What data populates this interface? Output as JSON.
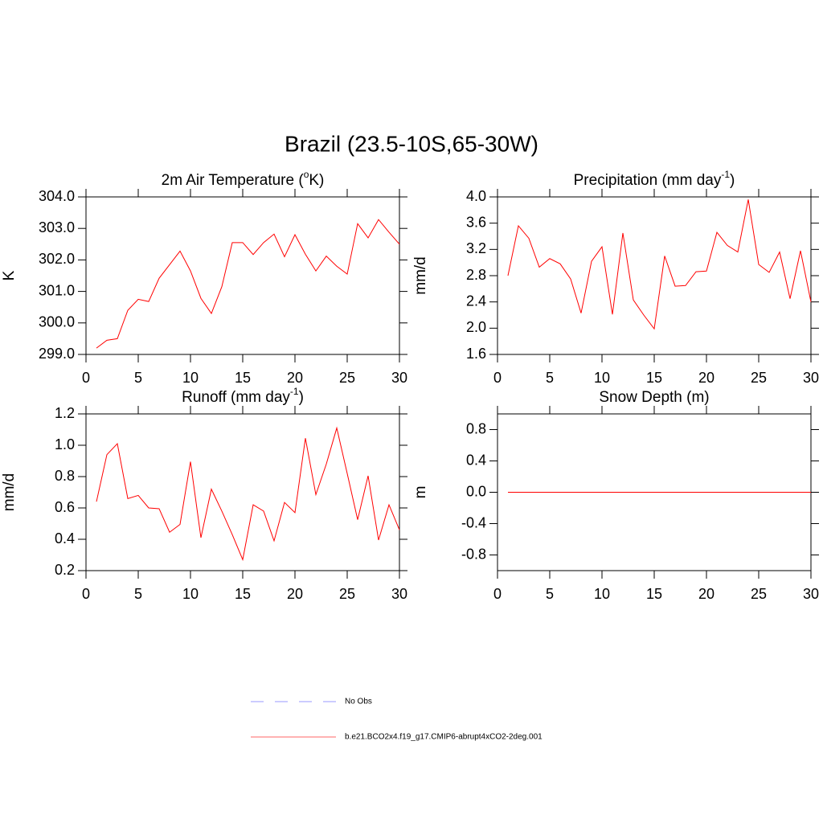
{
  "title": "Brazil (23.5-10S,65-30W)",
  "legend": [
    {
      "name": "No Obs",
      "color": "#9999ff",
      "dashed": true
    },
    {
      "name": "b.e21.BCO2x4.f19_g17.CMIP6-abrupt4xCO2-2deg.001",
      "color": "#ff6666",
      "dashed": false
    }
  ],
  "chart_data": [
    {
      "type": "line",
      "title": [
        {
          "text": "2m Air Temperature ("
        },
        {
          "text": "o",
          "sup": true
        },
        {
          "text": "K)"
        }
      ],
      "y_label": "K",
      "x": [
        1,
        2,
        3,
        4,
        5,
        6,
        7,
        8,
        9,
        10,
        11,
        12,
        13,
        14,
        15,
        16,
        17,
        18,
        19,
        20,
        21,
        22,
        23,
        24,
        25,
        26,
        27,
        28,
        29,
        30
      ],
      "xlim": [
        0,
        30
      ],
      "xticks": [
        0,
        5,
        10,
        15,
        20,
        25,
        30
      ],
      "ylim": [
        299,
        304
      ],
      "yticks": [
        {
          "value": 299,
          "label": "299.0"
        },
        {
          "value": 300,
          "label": "300.0"
        },
        {
          "value": 301,
          "label": "301.0"
        },
        {
          "value": 302,
          "label": "302.0"
        },
        {
          "value": 303,
          "label": "303.0"
        },
        {
          "value": 304,
          "label": "304.0"
        }
      ],
      "series": [
        {
          "color": "#ff0000",
          "values": [
            299.2,
            299.45,
            299.5,
            300.4,
            300.75,
            300.68,
            301.42,
            301.85,
            302.28,
            301.65,
            300.78,
            300.3,
            301.15,
            302.55,
            302.55,
            302.17,
            302.55,
            302.82,
            302.1,
            302.8,
            302.18,
            301.65,
            302.12,
            301.8,
            301.55,
            303.15,
            302.7,
            303.28,
            302.88,
            302.5
          ]
        }
      ]
    },
    {
      "type": "line",
      "title": [
        {
          "text": "Precipitation (mm day"
        },
        {
          "text": "-1",
          "sup": true
        },
        {
          "text": ")"
        }
      ],
      "y_label": "mm/d",
      "x": [
        1,
        2,
        3,
        4,
        5,
        6,
        7,
        8,
        9,
        10,
        11,
        12,
        13,
        14,
        15,
        16,
        17,
        18,
        19,
        20,
        21,
        22,
        23,
        24,
        25,
        26,
        27,
        28,
        29,
        30
      ],
      "xlim": [
        0,
        30
      ],
      "xticks": [
        0,
        5,
        10,
        15,
        20,
        25,
        30
      ],
      "ylim": [
        1.6,
        4.0
      ],
      "yticks": [
        1.6,
        {
          "value": 2,
          "label": "2.0"
        },
        2.4,
        2.8,
        3.2,
        3.6,
        {
          "value": 4,
          "label": "4.0"
        }
      ],
      "series": [
        {
          "color": "#ff0000",
          "values": [
            2.8,
            3.56,
            3.37,
            2.93,
            3.06,
            2.98,
            2.75,
            2.23,
            3.02,
            3.24,
            2.21,
            3.45,
            2.43,
            2.2,
            1.99,
            3.1,
            2.64,
            2.65,
            2.86,
            2.87,
            3.46,
            3.26,
            3.16,
            3.96,
            2.97,
            2.85,
            3.16,
            2.45,
            3.18,
            2.4
          ]
        }
      ]
    },
    {
      "type": "line",
      "title": [
        {
          "text": "Runoff (mm day"
        },
        {
          "text": "-1",
          "sup": true
        },
        {
          "text": ")"
        }
      ],
      "y_label": "mm/d",
      "x": [
        1,
        2,
        3,
        4,
        5,
        6,
        7,
        8,
        9,
        10,
        11,
        12,
        13,
        14,
        15,
        16,
        17,
        18,
        19,
        20,
        21,
        22,
        23,
        24,
        25,
        26,
        27,
        28,
        29,
        30
      ],
      "xlim": [
        0,
        30
      ],
      "xticks": [
        0,
        5,
        10,
        15,
        20,
        25,
        30
      ],
      "ylim": [
        0.2,
        1.2
      ],
      "yticks": [
        0.2,
        0.4,
        0.6,
        0.8,
        {
          "value": 1,
          "label": "1.0"
        },
        1.2
      ],
      "series": [
        {
          "color": "#ff0000",
          "values": [
            0.64,
            0.94,
            1.01,
            0.66,
            0.68,
            0.6,
            0.595,
            0.445,
            0.495,
            0.895,
            0.41,
            0.72,
            0.58,
            0.43,
            0.27,
            0.62,
            0.58,
            0.39,
            0.635,
            0.57,
            1.045,
            0.685,
            0.88,
            1.11,
            0.82,
            0.525,
            0.805,
            0.395,
            0.62,
            0.46
          ]
        }
      ]
    },
    {
      "type": "line",
      "title": [
        {
          "text": "Snow Depth (m)"
        }
      ],
      "y_label": "m",
      "x": [
        1,
        2,
        3,
        4,
        5,
        6,
        7,
        8,
        9,
        10,
        11,
        12,
        13,
        14,
        15,
        16,
        17,
        18,
        19,
        20,
        21,
        22,
        23,
        24,
        25,
        26,
        27,
        28,
        29,
        30
      ],
      "xlim": [
        0,
        30
      ],
      "xticks": [
        0,
        5,
        10,
        15,
        20,
        25,
        30
      ],
      "ylim": [
        -1,
        1
      ],
      "yticks": [
        -0.8,
        -0.4,
        {
          "value": 0,
          "label": "0.0"
        },
        0.4,
        0.8
      ],
      "series": [
        {
          "color": "#ff0000",
          "values": [
            0,
            0,
            0,
            0,
            0,
            0,
            0,
            0,
            0,
            0,
            0,
            0,
            0,
            0,
            0,
            0,
            0,
            0,
            0,
            0,
            0,
            0,
            0,
            0,
            0,
            0,
            0,
            0,
            0,
            0
          ]
        }
      ]
    }
  ]
}
